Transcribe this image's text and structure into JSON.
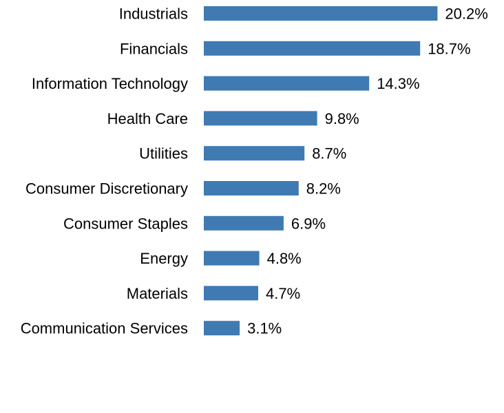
{
  "chart_data": {
    "type": "bar",
    "orientation": "horizontal",
    "categories": [
      "Industrials",
      "Financials",
      "Information Technology",
      "Health Care",
      "Utilities",
      "Consumer Discretionary",
      "Consumer Staples",
      "Energy",
      "Materials",
      "Communication Services"
    ],
    "values": [
      20.2,
      18.7,
      14.3,
      9.8,
      8.7,
      8.2,
      6.9,
      4.8,
      4.7,
      3.1
    ],
    "value_labels": [
      "20.2%",
      "18.7%",
      "14.3%",
      "9.8%",
      "8.7%",
      "8.2%",
      "6.9%",
      "4.8%",
      "4.7%",
      "3.1%"
    ],
    "unit": "%",
    "title": "",
    "xlabel": "",
    "ylabel": "",
    "grid": false,
    "legend": "none",
    "bar_color": "#3f7ab3"
  }
}
